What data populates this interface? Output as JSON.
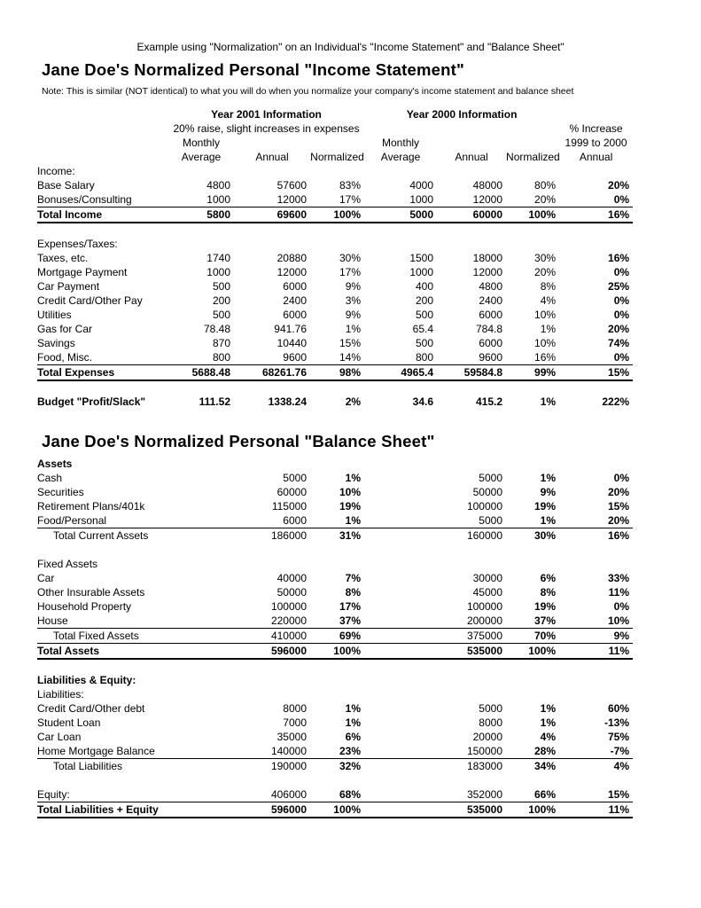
{
  "page": {
    "top_note": "Example using \"Normalization\" on an Individual's \"Income Statement\" and \"Balance Sheet\"",
    "income_title": "Jane Doe's Normalized Personal \"Income Statement\"",
    "income_note": "Note:  This is similar (NOT identical) to what you will do when you normalize your company's income statement and balance sheet",
    "balance_title": "Jane Doe's Normalized Personal \"Balance Sheet\""
  },
  "income_header": {
    "year2001": "Year 2001 Information",
    "year2000": "Year 2000 Information",
    "subtitle2001": "20% raise, slight increases in expenses",
    "pct_increase_line1": "% Increase",
    "pct_increase_line2": "1999 to 2000",
    "pct_increase_line3": "Annual",
    "monthly": "Monthly",
    "average": "Average",
    "annual": "Annual",
    "normalized": "Normalized"
  },
  "income_table": {
    "bold_cols": [
      6
    ],
    "rows": [
      {
        "label": "Income:"
      },
      {
        "label": "Base Salary",
        "cells": [
          "4800",
          "57600",
          "83%",
          "4000",
          "48000",
          "80%",
          "20%"
        ]
      },
      {
        "label": "Bonuses/Consulting",
        "cells": [
          "1000",
          "12000",
          "17%",
          "1000",
          "12000",
          "20%",
          "0%"
        ]
      },
      {
        "label": "Total Income",
        "cells": [
          "5800",
          "69600",
          "100%",
          "5000",
          "60000",
          "100%",
          "16%"
        ],
        "bold": true,
        "rule_above": true,
        "rule_below": "thick"
      },
      {
        "blank": true
      },
      {
        "label": "Expenses/Taxes:"
      },
      {
        "label": "Taxes, etc.",
        "cells": [
          "1740",
          "20880",
          "30%",
          "1500",
          "18000",
          "30%",
          "16%"
        ]
      },
      {
        "label": "Mortgage Payment",
        "cells": [
          "1000",
          "12000",
          "17%",
          "1000",
          "12000",
          "20%",
          "0%"
        ]
      },
      {
        "label": "Car Payment",
        "cells": [
          "500",
          "6000",
          "9%",
          "400",
          "4800",
          "8%",
          "25%"
        ]
      },
      {
        "label": "Credit Card/Other Pay",
        "cells": [
          "200",
          "2400",
          "3%",
          "200",
          "2400",
          "4%",
          "0%"
        ]
      },
      {
        "label": "Utilities",
        "cells": [
          "500",
          "6000",
          "9%",
          "500",
          "6000",
          "10%",
          "0%"
        ]
      },
      {
        "label": "Gas for Car",
        "cells": [
          "78.48",
          "941.76",
          "1%",
          "65.4",
          "784.8",
          "1%",
          "20%"
        ]
      },
      {
        "label": "Savings",
        "cells": [
          "870",
          "10440",
          "15%",
          "500",
          "6000",
          "10%",
          "74%"
        ]
      },
      {
        "label": "Food, Misc.",
        "cells": [
          "800",
          "9600",
          "14%",
          "800",
          "9600",
          "16%",
          "0%"
        ]
      },
      {
        "label": "Total Expenses",
        "cells": [
          "5688.48",
          "68261.76",
          "98%",
          "4965.4",
          "59584.8",
          "99%",
          "15%"
        ],
        "bold": true,
        "rule_above": true,
        "rule_below": "thick"
      },
      {
        "blank": true
      },
      {
        "label": "Budget \"Profit/Slack\"",
        "cells": [
          "111.52",
          "1338.24",
          "2%",
          "34.6",
          "415.2",
          "1%",
          "222%"
        ],
        "bold": true
      }
    ]
  },
  "balance_table": {
    "bold_cols": [
      2,
      5,
      6
    ],
    "rows": [
      {
        "label": "Assets",
        "bold_label": true
      },
      {
        "label": "Cash",
        "cells": [
          "",
          "5000",
          "1%",
          "",
          "5000",
          "1%",
          "0%"
        ]
      },
      {
        "label": "Securities",
        "cells": [
          "",
          "60000",
          "10%",
          "",
          "50000",
          "9%",
          "20%"
        ]
      },
      {
        "label": "Retirement Plans/401k",
        "cells": [
          "",
          "115000",
          "19%",
          "",
          "100000",
          "19%",
          "15%"
        ]
      },
      {
        "label": "Food/Personal",
        "cells": [
          "",
          "6000",
          "1%",
          "",
          "5000",
          "1%",
          "20%"
        ],
        "rule_below": "thin"
      },
      {
        "label": "Total Current Assets",
        "indent": true,
        "cells": [
          "",
          "186000",
          "31%",
          "",
          "160000",
          "30%",
          "16%"
        ]
      },
      {
        "blank": true
      },
      {
        "label": "Fixed Assets"
      },
      {
        "label": "Car",
        "cells": [
          "",
          "40000",
          "7%",
          "",
          "30000",
          "6%",
          "33%"
        ]
      },
      {
        "label": "Other Insurable Assets",
        "cells": [
          "",
          "50000",
          "8%",
          "",
          "45000",
          "8%",
          "11%"
        ]
      },
      {
        "label": "Household Property",
        "cells": [
          "",
          "100000",
          "17%",
          "",
          "100000",
          "19%",
          "0%"
        ]
      },
      {
        "label": "House",
        "cells": [
          "",
          "220000",
          "37%",
          "",
          "200000",
          "37%",
          "10%"
        ],
        "rule_below": "thin"
      },
      {
        "label": "Total Fixed Assets",
        "indent": true,
        "cells": [
          "",
          "410000",
          "69%",
          "",
          "375000",
          "70%",
          "9%"
        ],
        "rule_below": "thin"
      },
      {
        "label": "Total Assets",
        "cells": [
          "",
          "596000",
          "100%",
          "",
          "535000",
          "100%",
          "11%"
        ],
        "bold": true,
        "rule_below": "thick"
      },
      {
        "blank": true
      },
      {
        "label": "Liabilities & Equity:",
        "bold_label": true
      },
      {
        "label": "Liabilities:"
      },
      {
        "label": "Credit Card/Other debt",
        "cells": [
          "",
          "8000",
          "1%",
          "",
          "5000",
          "1%",
          "60%"
        ]
      },
      {
        "label": "Student Loan",
        "cells": [
          "",
          "7000",
          "1%",
          "",
          "8000",
          "1%",
          "-13%"
        ]
      },
      {
        "label": "Car Loan",
        "cells": [
          "",
          "35000",
          "6%",
          "",
          "20000",
          "4%",
          "75%"
        ]
      },
      {
        "label": "Home Mortgage Balance",
        "cells": [
          "",
          "140000",
          "23%",
          "",
          "150000",
          "28%",
          "-7%"
        ],
        "rule_below": "thin"
      },
      {
        "label": "Total Liabilities",
        "indent": true,
        "cells": [
          "",
          "190000",
          "32%",
          "",
          "183000",
          "34%",
          "4%"
        ]
      },
      {
        "blank": true
      },
      {
        "label": "Equity:",
        "cells": [
          "",
          "406000",
          "68%",
          "",
          "352000",
          "66%",
          "15%"
        ],
        "rule_below": "thin"
      },
      {
        "label": "Total Liabilities + Equity",
        "cells": [
          "",
          "596000",
          "100%",
          "",
          "535000",
          "100%",
          "11%"
        ],
        "bold": true,
        "rule_below": "thick"
      }
    ]
  }
}
